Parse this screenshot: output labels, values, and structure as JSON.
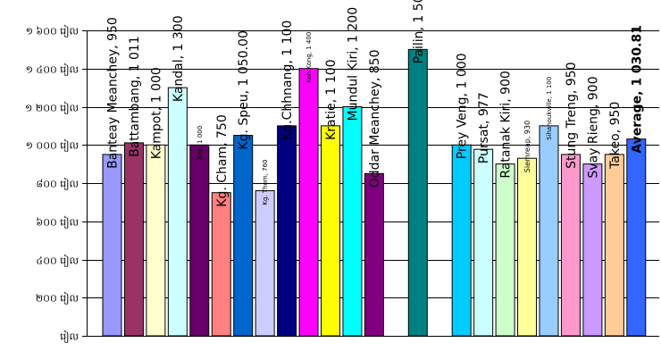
{
  "chart_data": {
    "type": "bar",
    "title": "",
    "xlabel": "",
    "ylabel": "",
    "ylim": [
      0,
      1600
    ],
    "y_ticks": [
      0,
      200,
      400,
      600,
      800,
      1000,
      1200,
      1400,
      1600
    ],
    "y_tick_labels": [
      "រៀល",
      "២០០ រៀល",
      "៤០០ រៀល",
      "៦០០ រៀល",
      "៨០០ រៀល",
      "១ ០០០ រៀល",
      "១ ២០០ រៀល",
      "១ ៤០០ រៀល",
      "១ ៦០០ រៀល"
    ],
    "grid": true,
    "legend": "none",
    "categories": [
      "Banteay Meanchey",
      "Battambang",
      "Kampot",
      "Kandal",
      "Kep",
      "Kg. Cham",
      "Kg. Speu",
      "Kg. Thom",
      "Kg.Chhnang",
      "Koh Kong",
      "Kratie",
      "Mundul Kiri",
      "Oddar Meanchey",
      "Pailin",
      "Prey Veng",
      "Pursat",
      "Ratanak Kiri",
      "Siemreap",
      "Sihanoukville",
      "Stung Treng",
      "Svay Rieng",
      "Takeo",
      "Average"
    ],
    "values": [
      950,
      1011,
      1000,
      1300,
      1000,
      750,
      1050,
      760,
      1100,
      1400,
      1100,
      1200,
      850,
      1500,
      1000,
      977,
      900,
      930,
      1100,
      950,
      900,
      950,
      1030.81
    ],
    "data_labels": [
      "Banteay Meanchey, 950",
      "Battambang, 1 011",
      "Kampot, 1 000",
      "Kandal, 1 300",
      "Kep, 1 000",
      "Kg. Cham, 750",
      "Kg. Speu, 1 050.00",
      "Kg. Thom, 760",
      "Kg.Chhnang, 1 100",
      "Koh Kong, 1 400",
      "Kratie, 1 100",
      "Mundul Kiri, 1 200",
      "Oddar Meanchey, 850",
      "Pailin, 1 500",
      "Prey Veng, 1 000",
      "Pursat, 977",
      "Ratanak Kiri, 900",
      "Siemreap, 930",
      "Sihanoukville, 1 100",
      "Stung Treng, 950",
      "Svay Rieng, 900",
      "Takeo, 950",
      "Average, 1 030.81"
    ],
    "colors": [
      "#9999ff",
      "#993366",
      "#ffffcc",
      "#ccffff",
      "#660066",
      "#ff8080",
      "#0066cc",
      "#ccccff",
      "#000080",
      "#ff00ff",
      "#ffff00",
      "#00ffff",
      "#800080",
      "#008080",
      "#00ccff",
      "#ccffff",
      "#ccffcc",
      "#ffff99",
      "#99ccff",
      "#ff99cc",
      "#cc99ff",
      "#ffcc99",
      "#3366ff"
    ]
  }
}
